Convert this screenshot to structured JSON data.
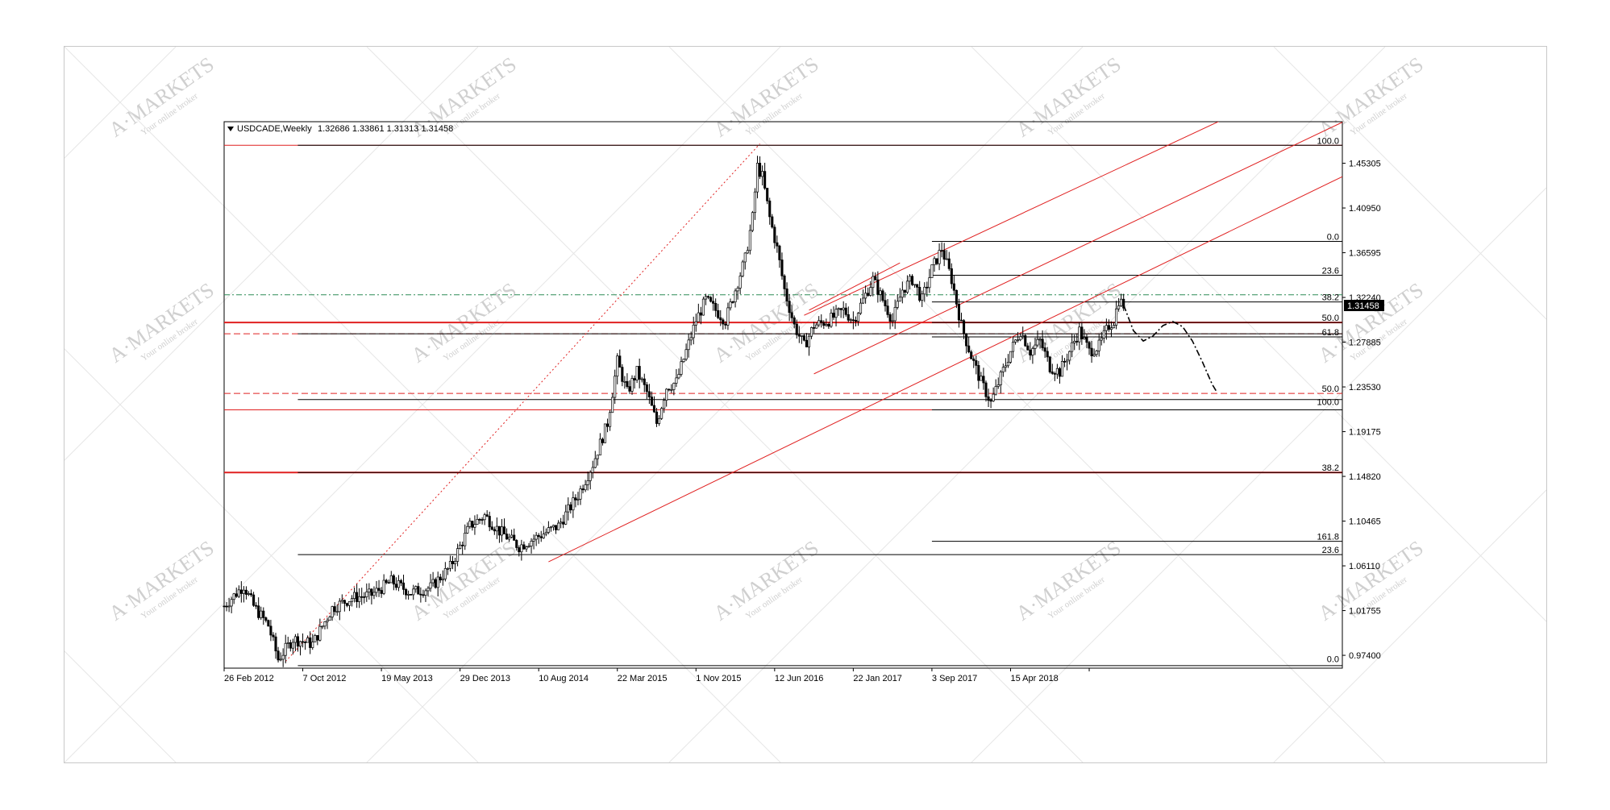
{
  "watermark": {
    "brand": "A·MARKETS",
    "tagline": "Your online broker"
  },
  "chart_data": {
    "type": "candlestick",
    "header": {
      "symbol": "USDCADE,Weekly",
      "ohlc": "1.32686 1.33861 1.31313 1.31458"
    },
    "ylim": [
      0.9615,
      1.4935
    ],
    "y_ticks": [
      0.974,
      1.01755,
      1.0611,
      1.10465,
      1.1482,
      1.19175,
      1.2353,
      1.27885,
      1.3224,
      1.36595,
      1.4095,
      1.45305
    ],
    "y_tick_labels": [
      "0.97400",
      "1.01755",
      "1.06110",
      "1.10465",
      "1.14820",
      "1.19175",
      "1.23530",
      "1.27885",
      "1.32240",
      "1.36595",
      "1.40950",
      "1.45305"
    ],
    "x_ticks": [
      0,
      32,
      64,
      96,
      128,
      160,
      192,
      224,
      256,
      288,
      320,
      352
    ],
    "x_tick_labels": [
      "26 Feb 2012",
      "7 Oct 2012",
      "19 May 2013",
      "29 Dec 2013",
      "10 Aug 2014",
      "22 Mar 2015",
      "1 Nov 2015",
      "12 Jun 2016",
      "22 Jan 2017",
      "3 Sep 2017",
      "15 Apr 2018",
      ""
    ],
    "x_range": [
      0,
      455
    ],
    "current_price": {
      "value": 1.31458,
      "label": "1.31458"
    },
    "anchors": [
      [
        0,
        1.022
      ],
      [
        8,
        1.042
      ],
      [
        12,
        1.022
      ],
      [
        18,
        1.003
      ],
      [
        22,
        0.97
      ],
      [
        28,
        0.99
      ],
      [
        36,
        0.985
      ],
      [
        44,
        1.02
      ],
      [
        52,
        1.03
      ],
      [
        60,
        1.033
      ],
      [
        68,
        1.046
      ],
      [
        76,
        1.035
      ],
      [
        84,
        1.04
      ],
      [
        92,
        1.06
      ],
      [
        100,
        1.1
      ],
      [
        106,
        1.11
      ],
      [
        112,
        1.095
      ],
      [
        120,
        1.08
      ],
      [
        128,
        1.09
      ],
      [
        136,
        1.1
      ],
      [
        144,
        1.13
      ],
      [
        150,
        1.16
      ],
      [
        156,
        1.2
      ],
      [
        160,
        1.26
      ],
      [
        164,
        1.23
      ],
      [
        168,
        1.25
      ],
      [
        172,
        1.23
      ],
      [
        176,
        1.2
      ],
      [
        180,
        1.235
      ],
      [
        184,
        1.24
      ],
      [
        188,
        1.27
      ],
      [
        192,
        1.3
      ],
      [
        196,
        1.32
      ],
      [
        200,
        1.31
      ],
      [
        204,
        1.3
      ],
      [
        208,
        1.33
      ],
      [
        212,
        1.36
      ],
      [
        215,
        1.4
      ],
      [
        217,
        1.45
      ],
      [
        219,
        1.44
      ],
      [
        222,
        1.4
      ],
      [
        225,
        1.37
      ],
      [
        228,
        1.33
      ],
      [
        232,
        1.295
      ],
      [
        236,
        1.275
      ],
      [
        240,
        1.295
      ],
      [
        246,
        1.3
      ],
      [
        252,
        1.31
      ],
      [
        256,
        1.3
      ],
      [
        260,
        1.32
      ],
      [
        264,
        1.34
      ],
      [
        268,
        1.32
      ],
      [
        272,
        1.3
      ],
      [
        276,
        1.33
      ],
      [
        280,
        1.34
      ],
      [
        284,
        1.32
      ],
      [
        288,
        1.35
      ],
      [
        292,
        1.37
      ],
      [
        296,
        1.34
      ],
      [
        300,
        1.295
      ],
      [
        304,
        1.265
      ],
      [
        308,
        1.24
      ],
      [
        312,
        1.22
      ],
      [
        316,
        1.245
      ],
      [
        320,
        1.27
      ],
      [
        324,
        1.29
      ],
      [
        328,
        1.27
      ],
      [
        332,
        1.28
      ],
      [
        336,
        1.255
      ],
      [
        340,
        1.25
      ],
      [
        344,
        1.27
      ],
      [
        348,
        1.29
      ],
      [
        352,
        1.27
      ],
      [
        356,
        1.275
      ],
      [
        360,
        1.295
      ],
      [
        362,
        1.3
      ],
      [
        364,
        1.32
      ],
      [
        366,
        1.315
      ]
    ],
    "horizontal_lines": [
      {
        "y": 1.4705,
        "x1": 0,
        "x2": 455,
        "color": "#e02020",
        "style": "solid",
        "width": 1
      },
      {
        "y": 1.4705,
        "x1": 30,
        "x2": 455,
        "color": "#000000",
        "style": "solid",
        "width": 1
      },
      {
        "y": 1.377,
        "x1": 288,
        "x2": 455,
        "color": "#000000",
        "style": "solid",
        "width": 1
      },
      {
        "y": 1.344,
        "x1": 288,
        "x2": 455,
        "color": "#000000",
        "style": "solid",
        "width": 1
      },
      {
        "y": 1.325,
        "x1": 0,
        "x2": 455,
        "color": "#2e8b57",
        "style": "dashdot",
        "width": 1
      },
      {
        "y": 1.318,
        "x1": 288,
        "x2": 455,
        "color": "#000000",
        "style": "solid",
        "width": 1
      },
      {
        "y": 1.298,
        "x1": 0,
        "x2": 455,
        "color": "#e02020",
        "style": "solid",
        "width": 2
      },
      {
        "y": 1.298,
        "x1": 288,
        "x2": 455,
        "color": "#000000",
        "style": "solid",
        "width": 1
      },
      {
        "y": 1.287,
        "x1": 0,
        "x2": 455,
        "color": "#e02020",
        "style": "dashed",
        "width": 1
      },
      {
        "y": 1.287,
        "x1": 30,
        "x2": 455,
        "color": "#000000",
        "style": "solid",
        "width": 1
      },
      {
        "y": 1.284,
        "x1": 288,
        "x2": 455,
        "color": "#000000",
        "style": "solid",
        "width": 1
      },
      {
        "y": 1.229,
        "x1": 0,
        "x2": 455,
        "color": "#e02020",
        "style": "dashed",
        "width": 1
      },
      {
        "y": 1.223,
        "x1": 30,
        "x2": 455,
        "color": "#000000",
        "style": "solid",
        "width": 1
      },
      {
        "y": 1.213,
        "x1": 0,
        "x2": 455,
        "color": "#e02020",
        "style": "solid",
        "width": 1
      },
      {
        "y": 1.213,
        "x1": 288,
        "x2": 455,
        "color": "#000000",
        "style": "solid",
        "width": 1
      },
      {
        "y": 1.152,
        "x1": 0,
        "x2": 455,
        "color": "#e02020",
        "style": "solid",
        "width": 2
      },
      {
        "y": 1.152,
        "x1": 30,
        "x2": 455,
        "color": "#000000",
        "style": "solid",
        "width": 1
      },
      {
        "y": 1.085,
        "x1": 288,
        "x2": 455,
        "color": "#000000",
        "style": "solid",
        "width": 1
      },
      {
        "y": 1.072,
        "x1": 30,
        "x2": 455,
        "color": "#000000",
        "style": "solid",
        "width": 1
      },
      {
        "y": 0.964,
        "x1": 30,
        "x2": 455,
        "color": "#000000",
        "style": "solid",
        "width": 1
      }
    ],
    "fib_labels": [
      {
        "y": 1.4705,
        "text": "100.0"
      },
      {
        "y": 1.377,
        "text": "0.0"
      },
      {
        "y": 1.344,
        "text": "23.6"
      },
      {
        "y": 1.318,
        "text": "38.2"
      },
      {
        "y": 1.298,
        "text": "50.0"
      },
      {
        "y": 1.284,
        "text": "61.8"
      },
      {
        "y": 1.229,
        "text": "50.0"
      },
      {
        "y": 1.216,
        "text": "100.0"
      },
      {
        "y": 1.152,
        "text": "38.2"
      },
      {
        "y": 1.085,
        "text": "161.8"
      },
      {
        "y": 1.072,
        "text": "23.6"
      },
      {
        "y": 0.966,
        "text": "0.0"
      }
    ],
    "trend_lines": [
      {
        "x1": 25,
        "y1": 0.968,
        "x2": 218,
        "y2": 1.472,
        "color": "#e02020",
        "style": "dotted"
      },
      {
        "x1": 132,
        "y1": 1.065,
        "x2": 455,
        "y2": 1.44,
        "color": "#e02020",
        "style": "solid"
      },
      {
        "x1": 236,
        "y1": 1.305,
        "x2": 455,
        "y2": 1.55,
        "color": "#e02020",
        "style": "solid"
      },
      {
        "x1": 240,
        "y1": 1.248,
        "x2": 455,
        "y2": 1.493,
        "color": "#e02020",
        "style": "solid"
      },
      {
        "x1": 238,
        "y1": 1.31,
        "x2": 275,
        "y2": 1.356,
        "color": "#e02020",
        "style": "solid"
      }
    ],
    "forecast_path": [
      [
        366,
        1.315
      ],
      [
        370,
        1.29
      ],
      [
        374,
        1.28
      ],
      [
        378,
        1.285
      ],
      [
        382,
        1.295
      ],
      [
        386,
        1.299
      ],
      [
        390,
        1.294
      ],
      [
        394,
        1.28
      ],
      [
        398,
        1.26
      ],
      [
        402,
        1.238
      ],
      [
        404,
        1.23
      ]
    ]
  }
}
